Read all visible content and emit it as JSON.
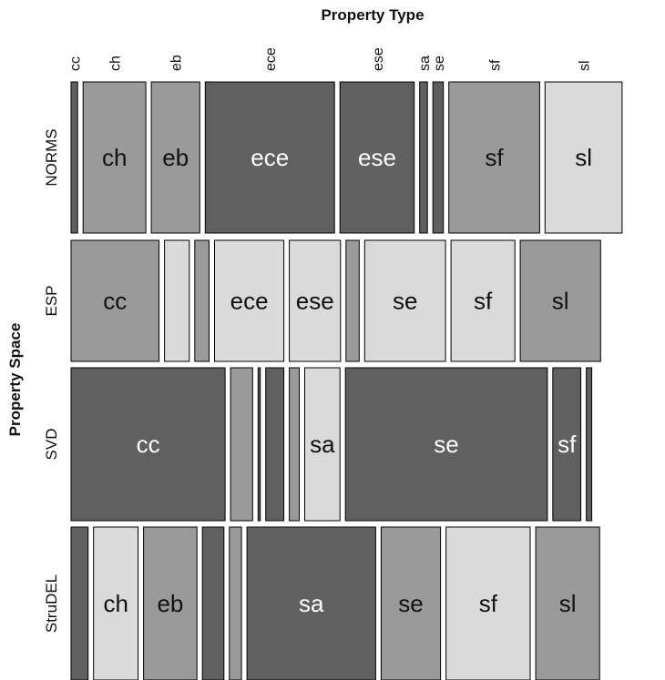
{
  "chart_data": {
    "type": "mosaic",
    "title": "",
    "xlabel": "Property Type",
    "ylabel": "Property Space",
    "x_categories": [
      "cc",
      "ch",
      "eb",
      "ece",
      "ese",
      "sa",
      "se",
      "sf",
      "sl"
    ],
    "y_categories": [
      "NORMS",
      "ESP",
      "SVD",
      "StruDEL"
    ],
    "shade_colors": {
      "dark": "#606060",
      "medium": "#9a9a9a",
      "light": "#dadada"
    },
    "rows": [
      {
        "name": "NORMS",
        "cells": [
          {
            "category": "cc",
            "share": 0.012,
            "shade": "dark",
            "label": ""
          },
          {
            "category": "ch",
            "share": 0.114,
            "shade": "medium",
            "label": "ch"
          },
          {
            "category": "eb",
            "share": 0.088,
            "shade": "medium",
            "label": "eb"
          },
          {
            "category": "ece",
            "share": 0.235,
            "shade": "dark",
            "label": "ece"
          },
          {
            "category": "ese",
            "share": 0.135,
            "shade": "dark",
            "label": "ese"
          },
          {
            "category": "sa",
            "share": 0.014,
            "shade": "dark",
            "label": ""
          },
          {
            "category": "se",
            "share": 0.019,
            "shade": "dark",
            "label": ""
          },
          {
            "category": "sf",
            "share": 0.165,
            "shade": "medium",
            "label": "sf"
          },
          {
            "category": "sl",
            "share": 0.14,
            "shade": "light",
            "label": "sl"
          }
        ]
      },
      {
        "name": "ESP",
        "cells": [
          {
            "category": "cc",
            "share": 0.16,
            "shade": "medium",
            "label": "cc"
          },
          {
            "category": "ch",
            "share": 0.045,
            "shade": "light",
            "label": ""
          },
          {
            "category": "eb",
            "share": 0.026,
            "shade": "medium",
            "label": ""
          },
          {
            "category": "ece",
            "share": 0.126,
            "shade": "light",
            "label": "ece"
          },
          {
            "category": "ese",
            "share": 0.093,
            "shade": "light",
            "label": "ese"
          },
          {
            "category": "sa",
            "share": 0.024,
            "shade": "medium",
            "label": ""
          },
          {
            "category": "se",
            "share": 0.147,
            "shade": "light",
            "label": "se"
          },
          {
            "category": "sf",
            "share": 0.116,
            "shade": "light",
            "label": "sf"
          },
          {
            "category": "sl",
            "share": 0.146,
            "shade": "medium",
            "label": "sl"
          }
        ]
      },
      {
        "name": "SVD",
        "cells": [
          {
            "category": "cc",
            "share": 0.28,
            "shade": "dark",
            "label": "cc"
          },
          {
            "category": "ch",
            "share": 0.04,
            "shade": "medium",
            "label": ""
          },
          {
            "category": "eb",
            "share": 0.004,
            "shade": "dark",
            "label": ""
          },
          {
            "category": "ece",
            "share": 0.033,
            "shade": "dark",
            "label": ""
          },
          {
            "category": "ese",
            "share": 0.018,
            "shade": "medium",
            "label": ""
          },
          {
            "category": "sa",
            "share": 0.064,
            "shade": "light",
            "label": "sa"
          },
          {
            "category": "se",
            "share": 0.367,
            "shade": "dark",
            "label": "se"
          },
          {
            "category": "sf",
            "share": 0.051,
            "shade": "dark",
            "label": "sf"
          },
          {
            "category": "sl",
            "share": 0.01,
            "shade": "dark",
            "label": ""
          }
        ]
      },
      {
        "name": "StruDEL",
        "cells": [
          {
            "category": "cc",
            "share": 0.031,
            "shade": "dark",
            "label": ""
          },
          {
            "category": "ch",
            "share": 0.081,
            "shade": "light",
            "label": "ch"
          },
          {
            "category": "eb",
            "share": 0.097,
            "shade": "medium",
            "label": "eb"
          },
          {
            "category": "ece",
            "share": 0.039,
            "shade": "dark",
            "label": ""
          },
          {
            "category": "ese",
            "share": 0.022,
            "shade": "medium",
            "label": ""
          },
          {
            "category": "sa",
            "share": 0.234,
            "shade": "dark",
            "label": "sa"
          },
          {
            "category": "se",
            "share": 0.108,
            "shade": "medium",
            "label": "se"
          },
          {
            "category": "sf",
            "share": 0.153,
            "shade": "light",
            "label": "sf"
          },
          {
            "category": "sl",
            "share": 0.116,
            "shade": "medium",
            "label": "sl"
          }
        ]
      }
    ]
  }
}
